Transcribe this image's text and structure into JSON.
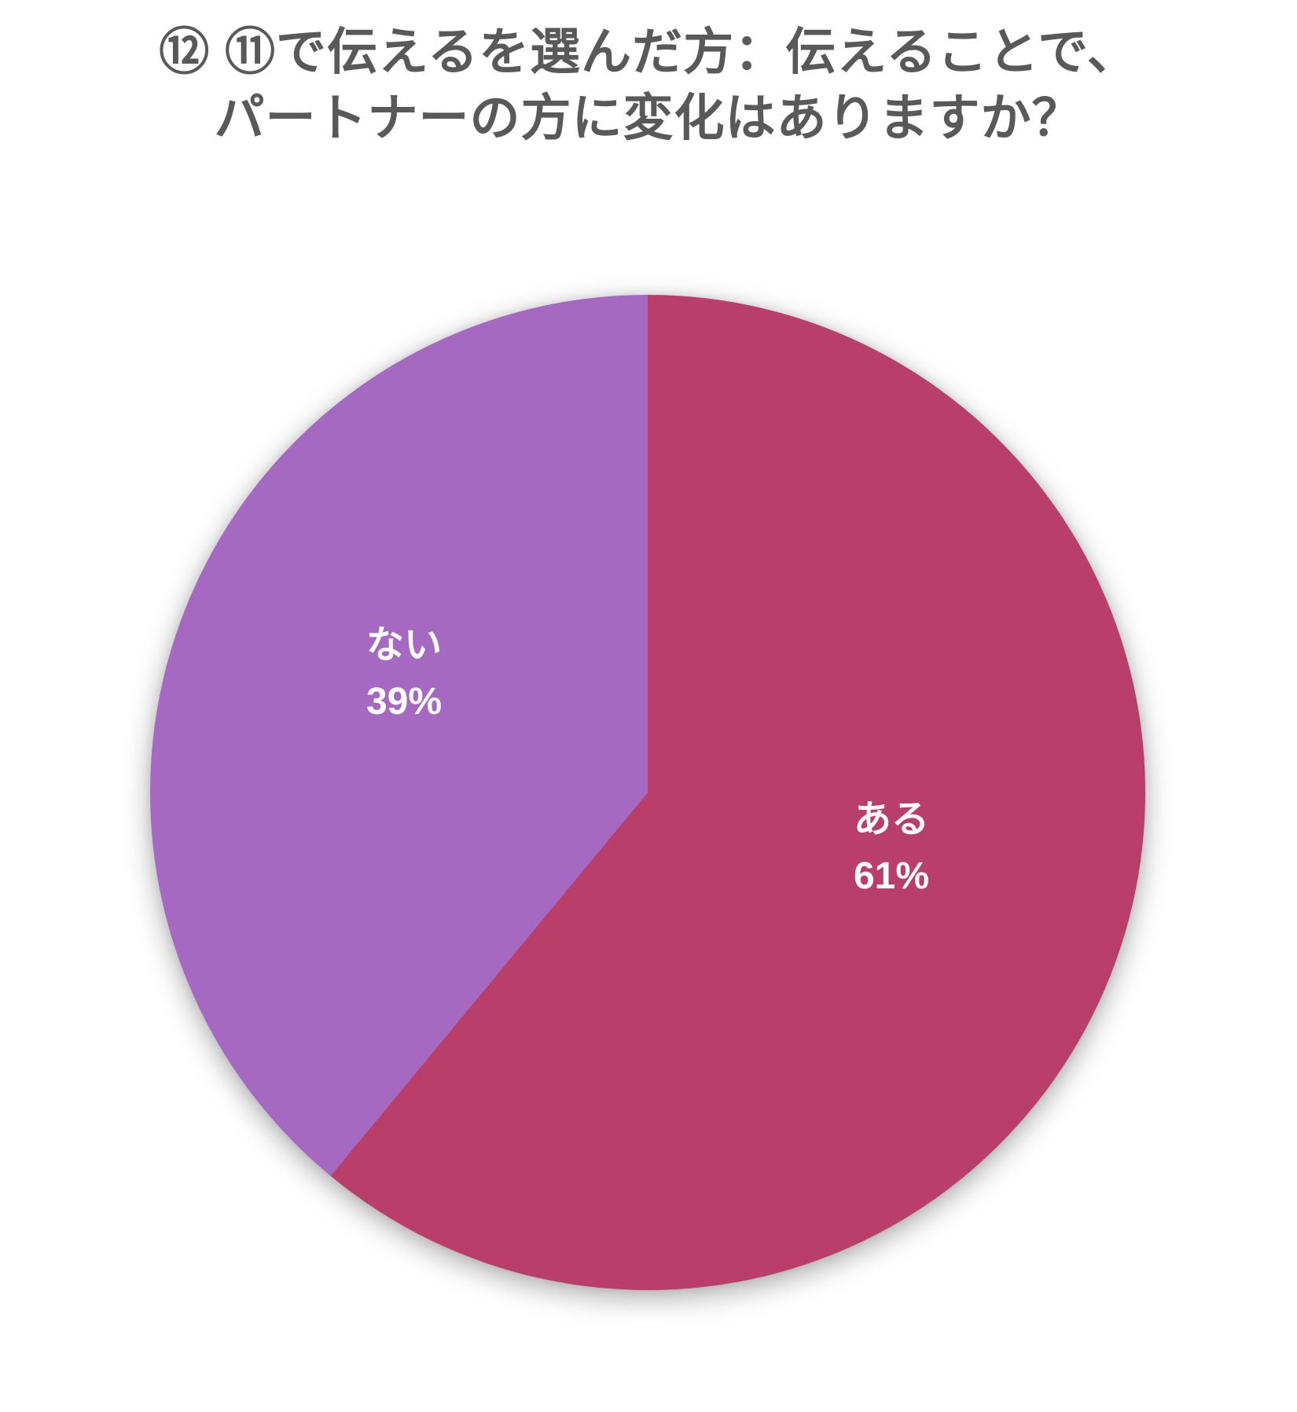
{
  "title": {
    "line1": "⑫ ⑪で伝えるを選んだ方：伝えることで、",
    "line2": "パートナーの方に変化はありますか？"
  },
  "chart_data": {
    "type": "pie",
    "title": "⑫ ⑪で伝えるを選んだ方：伝えることで、パートナーの方に変化はありますか？",
    "slices": [
      {
        "label": "ある",
        "value": 61,
        "display": "61%",
        "color": "#B93E69"
      },
      {
        "label": "ない",
        "value": 39,
        "display": "39%",
        "color": "#A669C2"
      }
    ],
    "start_angle_deg": 0,
    "direction": "clockwise",
    "legend": "none",
    "data_label_color": "#FFFFFF"
  },
  "colors": {
    "background": "#FFFFFF",
    "title_text": "#595959"
  }
}
